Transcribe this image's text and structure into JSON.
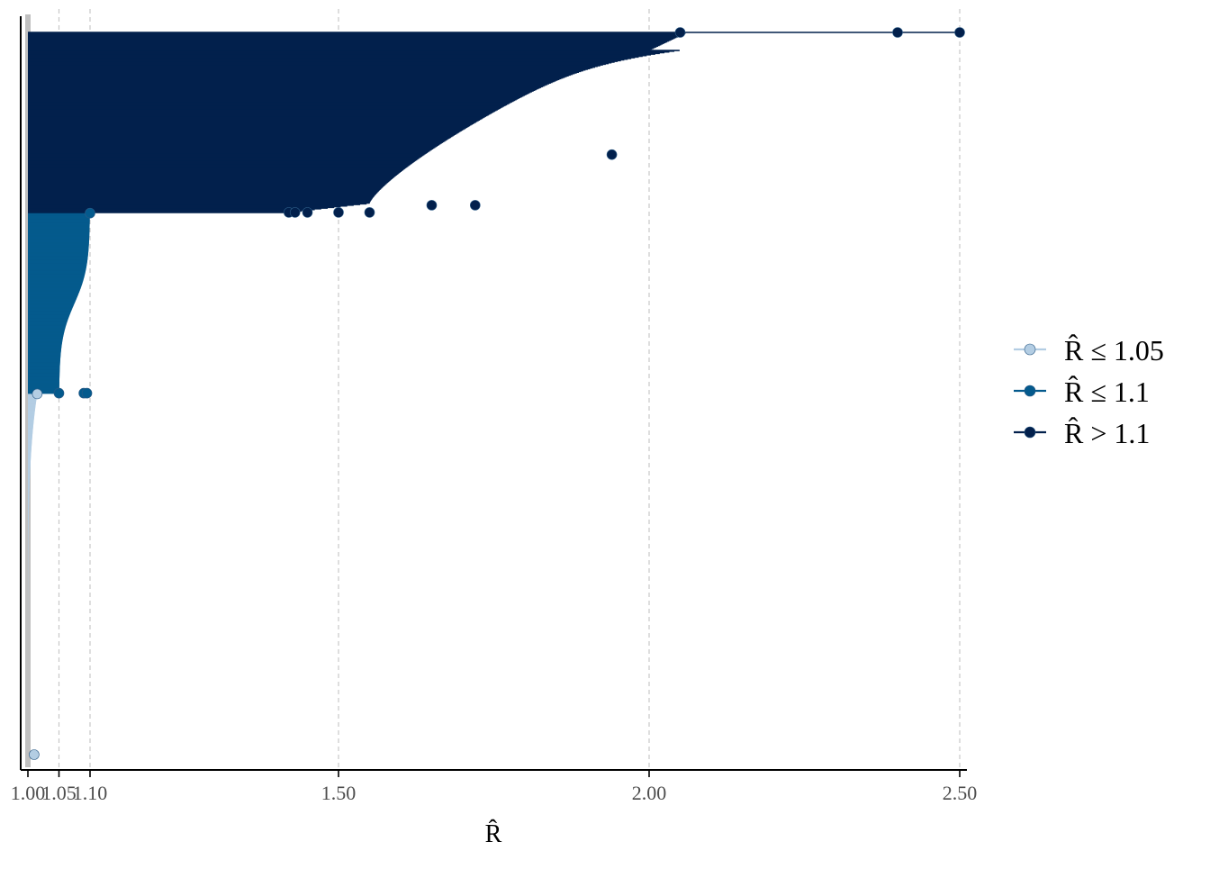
{
  "chart_data": {
    "type": "rhat-lollipop",
    "xlabel": "R̂",
    "ylabel": "",
    "xlim": [
      0.99,
      2.51
    ],
    "x_tick_values": [
      1.0,
      1.05,
      1.1,
      1.5,
      2.0,
      2.5
    ],
    "x_tick_labels": [
      "1.00",
      "1.05",
      "1.10",
      "1.50",
      "2.00",
      "2.50"
    ],
    "reference_line": 1.0,
    "grid": "vertical dashed at ticks",
    "legend_position": "right",
    "n_parameters_approx": 1000,
    "series": [
      {
        "name": "R̂ ≤ 1.05",
        "color": "#b3cde3",
        "rank_range": [
          1,
          500
        ],
        "rhat_range": [
          1.0,
          1.015
        ]
      },
      {
        "name": "R̂ ≤ 1.1",
        "color": "#045a8d",
        "rank_range": [
          501,
          750
        ],
        "rhat_range": [
          1.05,
          1.1
        ]
      },
      {
        "name": "R̂ > 1.1",
        "color": "#02204c",
        "rank_range": [
          751,
          1000
        ],
        "rhat_range": [
          1.42,
          2.5
        ]
      }
    ],
    "notable_points": [
      {
        "series": "R̂ ≤ 1.05",
        "rhat": 1.01
      },
      {
        "series": "R̂ ≤ 1.05",
        "rhat": 1.015
      },
      {
        "series": "R̂ ≤ 1.1",
        "rhat": 1.05
      },
      {
        "series": "R̂ ≤ 1.1",
        "rhat": 1.09
      },
      {
        "series": "R̂ ≤ 1.1",
        "rhat": 1.095
      },
      {
        "series": "R̂ ≤ 1.1",
        "rhat": 1.1
      },
      {
        "series": "R̂ > 1.1",
        "rhat": 1.42
      },
      {
        "series": "R̂ > 1.1",
        "rhat": 1.43
      },
      {
        "series": "R̂ > 1.1",
        "rhat": 1.45
      },
      {
        "series": "R̂ > 1.1",
        "rhat": 1.5
      },
      {
        "series": "R̂ > 1.1",
        "rhat": 1.55
      },
      {
        "series": "R̂ > 1.1",
        "rhat": 1.65
      },
      {
        "series": "R̂ > 1.1",
        "rhat": 1.72
      },
      {
        "series": "R̂ > 1.1",
        "rhat": 1.94
      },
      {
        "series": "R̂ > 1.1",
        "rhat": 2.05
      },
      {
        "series": "R̂ > 1.1",
        "rhat": 2.4
      },
      {
        "series": "R̂ > 1.1",
        "rhat": 2.5
      }
    ],
    "legend": [
      "R̂ ≤ 1.05",
      "R̂ ≤ 1.1",
      "R̂ > 1.1"
    ]
  }
}
